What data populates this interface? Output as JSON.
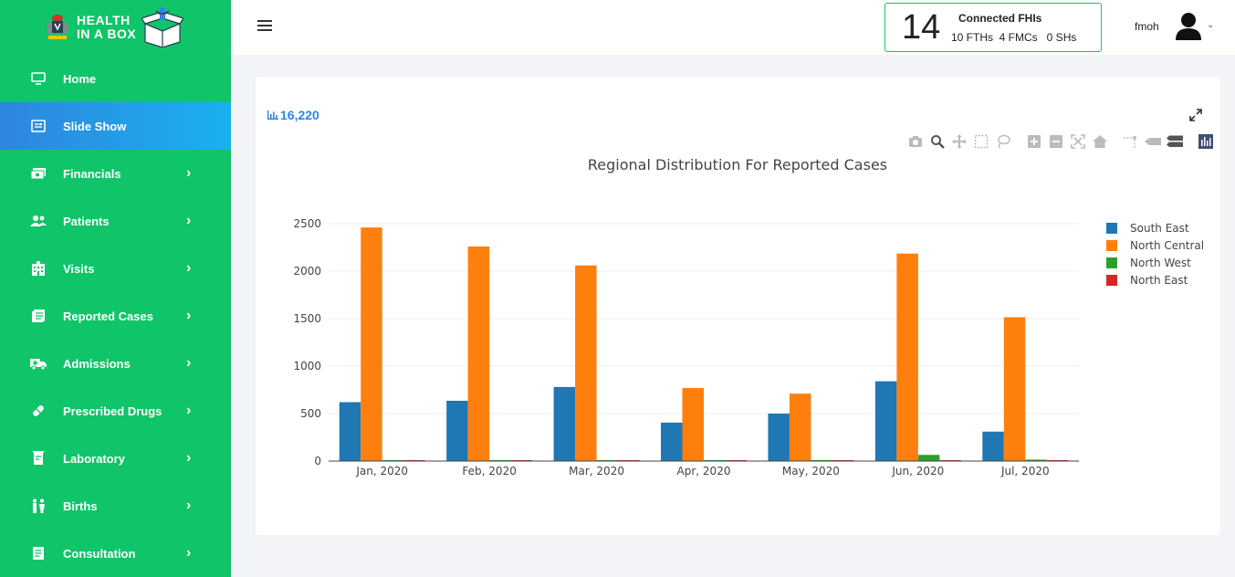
{
  "brand": {
    "line1": "HEALTH",
    "line2": "IN A BOX"
  },
  "sidebar": {
    "items": [
      {
        "label": "Home",
        "icon": "monitor-icon",
        "chevron": false,
        "active": false
      },
      {
        "label": "Slide Show",
        "icon": "slideshow-icon",
        "chevron": false,
        "active": true
      },
      {
        "label": "Financials",
        "icon": "money-icon",
        "chevron": true,
        "active": false
      },
      {
        "label": "Patients",
        "icon": "users-icon",
        "chevron": true,
        "active": false
      },
      {
        "label": "Visits",
        "icon": "hospital-icon",
        "chevron": true,
        "active": false
      },
      {
        "label": "Reported Cases",
        "icon": "list-icon",
        "chevron": true,
        "active": false
      },
      {
        "label": "Admissions",
        "icon": "ambulance-icon",
        "chevron": true,
        "active": false
      },
      {
        "label": "Prescribed Drugs",
        "icon": "pill-icon",
        "chevron": true,
        "active": false
      },
      {
        "label": "Laboratory",
        "icon": "lab-icon",
        "chevron": true,
        "active": false
      },
      {
        "label": "Births",
        "icon": "family-icon",
        "chevron": true,
        "active": false
      },
      {
        "label": "Consultation",
        "icon": "document-icon",
        "chevron": true,
        "active": false
      }
    ]
  },
  "topbar": {
    "fhi_count": "14",
    "fhi_title": "Connected FHIs",
    "fhi_sub": "10 FTHs  4 FMCs   0 SHs",
    "user_name": "fmoh"
  },
  "card": {
    "total": "16,220"
  },
  "colors": {
    "sidebar": "#10c469",
    "active_from": "#2e86de",
    "active_to": "#1ab0f0",
    "series": [
      "#1f77b4",
      "#ff7f0e",
      "#2ca02c",
      "#d62728"
    ]
  },
  "chart_data": {
    "type": "bar",
    "title": "Regional Distribution For Reported Cases",
    "xlabel": "",
    "ylabel": "",
    "categories": [
      "Jan, 2020",
      "Feb, 2020",
      "Mar, 2020",
      "Apr, 2020",
      "May, 2020",
      "Jun, 2020",
      "Jul, 2020"
    ],
    "series": [
      {
        "name": "South East",
        "values": [
          620,
          635,
          780,
          405,
          500,
          840,
          310
        ]
      },
      {
        "name": "North Central",
        "values": [
          2460,
          2260,
          2060,
          770,
          710,
          2185,
          1515
        ]
      },
      {
        "name": "North West",
        "values": [
          2,
          2,
          2,
          2,
          10,
          65,
          15
        ]
      },
      {
        "name": "North East",
        "values": [
          3,
          2,
          3,
          3,
          2,
          3,
          3
        ]
      }
    ],
    "ylim": [
      0,
      2500
    ],
    "yticks": [
      "0",
      "500",
      "1000",
      "1500",
      "2000",
      "2500"
    ],
    "grid": true,
    "legend": "top-right"
  }
}
